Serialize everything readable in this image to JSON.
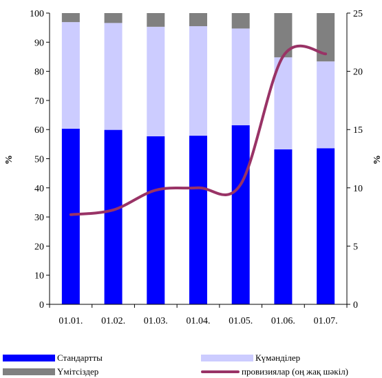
{
  "chart_data": {
    "type": "bar",
    "stacked": true,
    "categories": [
      "01.01.",
      "01.02.",
      "01.03.",
      "01.04.",
      "01.05.",
      "01.06.",
      "01.07."
    ],
    "series": [
      {
        "name": "Стандартты",
        "axis": "left",
        "color": "#0000ff",
        "values": [
          60.3,
          59.9,
          57.7,
          57.9,
          61.5,
          53.2,
          53.6
        ]
      },
      {
        "name": "Күмәнділер",
        "axis": "left",
        "color": "#ccccff",
        "values": [
          36.6,
          36.7,
          37.6,
          37.6,
          33.2,
          31.6,
          29.8
        ]
      },
      {
        "name": "Үмітсіздер",
        "axis": "left",
        "color": "#808080",
        "values": [
          3.1,
          3.4,
          4.7,
          4.5,
          5.3,
          15.2,
          16.6
        ]
      },
      {
        "name": "провизиялар (оң жақ шәкіл)",
        "axis": "right",
        "type": "line",
        "color": "#993366",
        "values": [
          7.7,
          8.1,
          9.8,
          10.0,
          10.3,
          21.3,
          21.5
        ]
      }
    ],
    "ylabel": "%",
    "ylabel_right": "%",
    "ylim": [
      0,
      100
    ],
    "ylim_right": [
      0,
      25
    ],
    "yticks": [
      0,
      10,
      20,
      30,
      40,
      50,
      60,
      70,
      80,
      90,
      100
    ],
    "yticks_right": [
      0,
      5,
      10,
      15,
      20,
      25
    ],
    "grid": false,
    "legend_position": "bottom"
  }
}
